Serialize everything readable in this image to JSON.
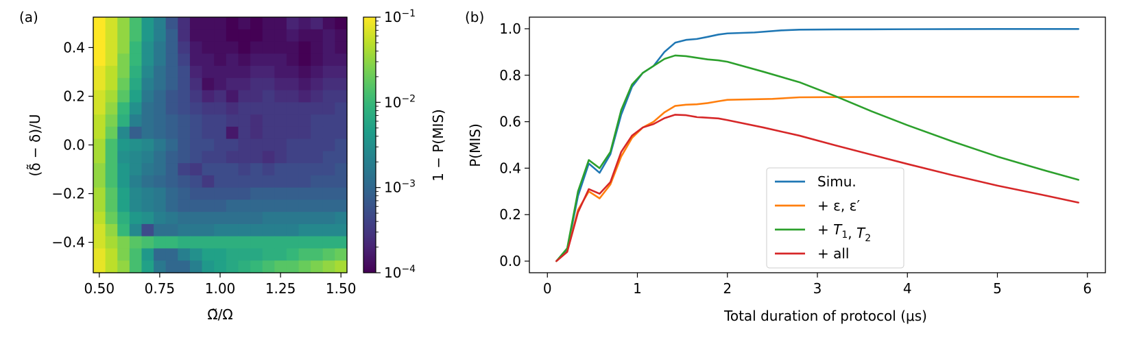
{
  "figure": {
    "panel_a_label": "(a)",
    "panel_b_label": "(b)"
  },
  "chart_data": [
    {
      "type": "heatmap",
      "panel": "(a)",
      "xlabel": "Ω̃/Ω",
      "ylabel": "(δ̃ − δ)/U",
      "colorbar_label": "1 − P(MIS)",
      "colorbar_scale": "log",
      "colorbar_range": [
        0.0001,
        0.1
      ],
      "colorbar_ticks": [
        {
          "value": 0.1,
          "label": "10−1"
        },
        {
          "value": 0.01,
          "label": "10−2"
        },
        {
          "value": 0.001,
          "label": "10−3"
        },
        {
          "value": 0.0001,
          "label": "10−4"
        }
      ],
      "colormap": "viridis",
      "xlim": [
        0.475,
        1.525
      ],
      "ylim": [
        -0.525,
        0.525
      ],
      "x_ticks": [
        0.5,
        0.75,
        1.0,
        1.25,
        1.5
      ],
      "x_tick_labels": [
        "0.50",
        "0.75",
        "1.00",
        "1.25",
        "1.50"
      ],
      "y_ticks": [
        -0.4,
        -0.2,
        0.0,
        0.2,
        0.4
      ],
      "y_tick_labels": [
        "−0.4",
        "−0.2",
        "0.0",
        "0.2",
        "0.4"
      ],
      "grid_shape": {
        "columns": 21,
        "rows": 21,
        "x_start": 0.5,
        "x_step": 0.05,
        "y_start": -0.5,
        "y_step": 0.05
      },
      "log10_values_rows_top_to_bottom": [
        [
          -1.0,
          -1.2,
          -1.5,
          -1.9,
          -2.4,
          -2.7,
          -3.2,
          -3.6,
          -3.9,
          -3.9,
          -3.9,
          -4.0,
          -3.9,
          -4.0,
          -3.9,
          -3.9,
          -3.7,
          -3.8,
          -3.7,
          -3.9,
          -4.0
        ],
        [
          -1.0,
          -1.2,
          -1.5,
          -1.9,
          -2.4,
          -2.7,
          -3.1,
          -3.6,
          -3.9,
          -3.9,
          -3.9,
          -4.0,
          -4.0,
          -4.0,
          -3.9,
          -3.9,
          -3.8,
          -3.9,
          -3.9,
          -3.8,
          -3.9
        ],
        [
          -1.0,
          -1.2,
          -1.5,
          -2.0,
          -2.5,
          -2.8,
          -3.1,
          -3.5,
          -3.8,
          -3.9,
          -3.9,
          -3.9,
          -4.0,
          -3.9,
          -3.9,
          -3.9,
          -3.9,
          -4.0,
          -3.9,
          -3.8,
          -3.9
        ],
        [
          -1.0,
          -1.2,
          -1.6,
          -2.0,
          -2.5,
          -2.8,
          -3.1,
          -3.4,
          -3.8,
          -3.8,
          -3.9,
          -3.8,
          -3.9,
          -3.8,
          -3.8,
          -3.8,
          -3.9,
          -4.0,
          -3.9,
          -3.8,
          -3.8
        ],
        [
          -1.1,
          -1.3,
          -1.6,
          -2.1,
          -2.6,
          -2.9,
          -3.1,
          -3.3,
          -3.7,
          -3.8,
          -3.8,
          -3.8,
          -3.8,
          -3.7,
          -3.7,
          -3.8,
          -3.8,
          -3.9,
          -3.8,
          -3.7,
          -3.7
        ],
        [
          -1.1,
          -1.3,
          -1.7,
          -2.2,
          -2.7,
          -2.9,
          -3.1,
          -3.3,
          -3.6,
          -3.9,
          -3.8,
          -3.7,
          -3.7,
          -3.6,
          -3.6,
          -3.7,
          -3.7,
          -3.8,
          -3.7,
          -3.6,
          -3.6
        ],
        [
          -1.2,
          -1.4,
          -1.8,
          -2.3,
          -2.8,
          -3.0,
          -3.2,
          -3.3,
          -3.5,
          -3.7,
          -3.6,
          -3.8,
          -3.6,
          -3.6,
          -3.5,
          -3.6,
          -3.6,
          -3.7,
          -3.6,
          -3.5,
          -3.5
        ],
        [
          -1.2,
          -1.5,
          -2.0,
          -2.5,
          -2.9,
          -3.0,
          -3.2,
          -3.3,
          -3.4,
          -3.5,
          -3.5,
          -3.6,
          -3.5,
          -3.5,
          -3.5,
          -3.5,
          -3.5,
          -3.5,
          -3.5,
          -3.5,
          -3.4
        ],
        [
          -1.3,
          -1.6,
          -2.1,
          -2.7,
          -2.9,
          -3.0,
          -3.1,
          -3.2,
          -3.3,
          -3.4,
          -3.4,
          -3.5,
          -3.5,
          -3.6,
          -3.5,
          -3.5,
          -3.5,
          -3.5,
          -3.4,
          -3.4,
          -3.4
        ],
        [
          -1.3,
          -1.7,
          -2.6,
          -3.1,
          -2.9,
          -3.0,
          -3.1,
          -3.2,
          -3.3,
          -3.4,
          -3.4,
          -3.8,
          -3.5,
          -3.6,
          -3.5,
          -3.5,
          -3.5,
          -3.5,
          -3.4,
          -3.4,
          -3.4
        ],
        [
          -1.4,
          -1.9,
          -2.4,
          -2.5,
          -2.6,
          -2.8,
          -3.0,
          -3.2,
          -3.3,
          -3.3,
          -3.4,
          -3.4,
          -3.5,
          -3.5,
          -3.5,
          -3.5,
          -3.4,
          -3.4,
          -3.4,
          -3.4,
          -3.3
        ],
        [
          -1.4,
          -1.9,
          -2.5,
          -2.6,
          -2.7,
          -2.9,
          -3.1,
          -3.2,
          -3.3,
          -3.4,
          -3.4,
          -3.5,
          -3.5,
          -3.5,
          -3.6,
          -3.5,
          -3.4,
          -3.4,
          -3.4,
          -3.3,
          -3.3
        ],
        [
          -1.5,
          -1.9,
          -2.4,
          -2.6,
          -2.8,
          -2.9,
          -3.1,
          -3.4,
          -3.5,
          -3.3,
          -3.3,
          -3.3,
          -3.4,
          -3.3,
          -3.4,
          -3.3,
          -3.3,
          -3.3,
          -3.3,
          -3.3,
          -3.2
        ],
        [
          -1.5,
          -1.9,
          -2.4,
          -2.7,
          -2.9,
          -3.0,
          -3.1,
          -3.2,
          -3.3,
          -3.5,
          -3.3,
          -3.3,
          -3.3,
          -3.3,
          -3.3,
          -3.3,
          -3.3,
          -3.3,
          -3.2,
          -3.2,
          -3.2
        ],
        [
          -1.4,
          -1.8,
          -2.3,
          -2.6,
          -2.7,
          -2.8,
          -3.0,
          -3.1,
          -3.2,
          -3.2,
          -3.2,
          -3.2,
          -3.2,
          -3.1,
          -3.1,
          -3.1,
          -3.1,
          -3.1,
          -3.1,
          -3.1,
          -3.1
        ],
        [
          -1.4,
          -1.8,
          -2.3,
          -2.6,
          -2.7,
          -2.8,
          -3.0,
          -3.1,
          -3.1,
          -3.1,
          -3.1,
          -3.0,
          -3.0,
          -3.0,
          -3.0,
          -3.0,
          -3.0,
          -3.0,
          -3.0,
          -3.0,
          -3.0
        ],
        [
          -1.3,
          -1.7,
          -2.1,
          -2.4,
          -2.5,
          -2.7,
          -2.8,
          -2.9,
          -2.9,
          -2.9,
          -2.9,
          -2.9,
          -2.9,
          -2.9,
          -2.8,
          -2.8,
          -2.8,
          -2.8,
          -2.8,
          -2.8,
          -2.7
        ],
        [
          -1.2,
          -1.5,
          -2.0,
          -2.6,
          -3.3,
          -2.9,
          -2.9,
          -2.8,
          -2.8,
          -2.8,
          -2.7,
          -2.7,
          -2.7,
          -2.7,
          -2.7,
          -2.7,
          -2.7,
          -2.6,
          -2.6,
          -2.6,
          -2.6
        ],
        [
          -1.2,
          -1.4,
          -1.6,
          -1.8,
          -1.9,
          -2.0,
          -2.0,
          -2.1,
          -2.1,
          -2.1,
          -2.1,
          -2.1,
          -2.1,
          -2.1,
          -2.1,
          -2.1,
          -2.1,
          -2.1,
          -2.1,
          -2.1,
          -2.1
        ],
        [
          -1.1,
          -1.3,
          -1.6,
          -1.9,
          -2.4,
          -3.0,
          -3.0,
          -2.7,
          -2.5,
          -2.3,
          -2.3,
          -2.2,
          -2.2,
          -2.2,
          -2.1,
          -2.1,
          -2.0,
          -1.9,
          -1.9,
          -1.8,
          -1.7
        ],
        [
          -1.1,
          -1.3,
          -1.5,
          -1.9,
          -2.3,
          -2.8,
          -3.0,
          -3.0,
          -2.7,
          -2.4,
          -2.3,
          -2.2,
          -2.1,
          -2.0,
          -1.9,
          -1.8,
          -1.8,
          -1.7,
          -1.6,
          -1.5,
          -1.4
        ]
      ]
    },
    {
      "type": "line",
      "panel": "(b)",
      "xlabel": "Total duration of protocol (μs)",
      "ylabel": "P(MIS)",
      "xlim": [
        -0.2,
        6.2
      ],
      "ylim": [
        -0.05,
        1.05
      ],
      "x_ticks": [
        0,
        1,
        2,
        3,
        4,
        5,
        6
      ],
      "x_tick_labels": [
        "0",
        "1",
        "2",
        "3",
        "4",
        "5",
        "6"
      ],
      "y_ticks": [
        0.0,
        0.2,
        0.4,
        0.6,
        0.8,
        1.0
      ],
      "y_tick_labels": [
        "0.0",
        "0.2",
        "0.4",
        "0.6",
        "0.8",
        "1.0"
      ],
      "grid": false,
      "legend_position": "lower-center",
      "series": [
        {
          "name": "Simu.",
          "color": "#1f77b4",
          "points": [
            [
              0.1,
              0.0
            ],
            [
              0.22,
              0.05
            ],
            [
              0.34,
              0.28
            ],
            [
              0.46,
              0.42
            ],
            [
              0.58,
              0.38
            ],
            [
              0.7,
              0.46
            ],
            [
              0.82,
              0.63
            ],
            [
              0.94,
              0.75
            ],
            [
              1.06,
              0.81
            ],
            [
              1.18,
              0.84
            ],
            [
              1.3,
              0.9
            ],
            [
              1.42,
              0.94
            ],
            [
              1.54,
              0.952
            ],
            [
              1.66,
              0.956
            ],
            [
              1.78,
              0.965
            ],
            [
              1.9,
              0.975
            ],
            [
              2.0,
              0.98
            ],
            [
              2.3,
              0.984
            ],
            [
              2.6,
              0.993
            ],
            [
              2.8,
              0.996
            ],
            [
              3.2,
              0.997
            ],
            [
              4.0,
              0.998
            ],
            [
              5.0,
              0.999
            ],
            [
              5.9,
              0.999
            ]
          ]
        },
        {
          "name": "+ ε, ε′",
          "color": "#ff7f0e",
          "points": [
            [
              0.1,
              0.0
            ],
            [
              0.22,
              0.04
            ],
            [
              0.34,
              0.22
            ],
            [
              0.46,
              0.3
            ],
            [
              0.58,
              0.27
            ],
            [
              0.7,
              0.33
            ],
            [
              0.82,
              0.45
            ],
            [
              0.94,
              0.53
            ],
            [
              1.06,
              0.575
            ],
            [
              1.18,
              0.6
            ],
            [
              1.3,
              0.64
            ],
            [
              1.42,
              0.668
            ],
            [
              1.54,
              0.673
            ],
            [
              1.66,
              0.675
            ],
            [
              1.78,
              0.68
            ],
            [
              1.9,
              0.688
            ],
            [
              2.0,
              0.694
            ],
            [
              2.5,
              0.698
            ],
            [
              2.8,
              0.705
            ],
            [
              3.2,
              0.706
            ],
            [
              4.0,
              0.707
            ],
            [
              5.0,
              0.707
            ],
            [
              5.9,
              0.707
            ]
          ]
        },
        {
          "name": "+ T1, T2",
          "color": "#2ca02c",
          "points": [
            [
              0.1,
              0.0
            ],
            [
              0.22,
              0.055
            ],
            [
              0.34,
              0.3
            ],
            [
              0.46,
              0.435
            ],
            [
              0.58,
              0.4
            ],
            [
              0.7,
              0.47
            ],
            [
              0.82,
              0.65
            ],
            [
              0.94,
              0.76
            ],
            [
              1.06,
              0.81
            ],
            [
              1.18,
              0.84
            ],
            [
              1.3,
              0.87
            ],
            [
              1.42,
              0.885
            ],
            [
              1.54,
              0.882
            ],
            [
              1.66,
              0.875
            ],
            [
              1.78,
              0.868
            ],
            [
              1.9,
              0.864
            ],
            [
              2.0,
              0.858
            ],
            [
              2.4,
              0.815
            ],
            [
              2.8,
              0.77
            ],
            [
              3.2,
              0.71
            ],
            [
              3.6,
              0.645
            ],
            [
              4.0,
              0.585
            ],
            [
              4.5,
              0.515
            ],
            [
              5.0,
              0.45
            ],
            [
              5.5,
              0.393
            ],
            [
              5.9,
              0.35
            ]
          ]
        },
        {
          "name": "+ all",
          "color": "#d62728",
          "points": [
            [
              0.1,
              0.0
            ],
            [
              0.22,
              0.04
            ],
            [
              0.34,
              0.21
            ],
            [
              0.46,
              0.31
            ],
            [
              0.58,
              0.29
            ],
            [
              0.7,
              0.34
            ],
            [
              0.82,
              0.47
            ],
            [
              0.94,
              0.54
            ],
            [
              1.06,
              0.575
            ],
            [
              1.18,
              0.59
            ],
            [
              1.3,
              0.615
            ],
            [
              1.42,
              0.63
            ],
            [
              1.54,
              0.628
            ],
            [
              1.66,
              0.62
            ],
            [
              1.78,
              0.617
            ],
            [
              1.9,
              0.614
            ],
            [
              2.0,
              0.607
            ],
            [
              2.4,
              0.575
            ],
            [
              2.8,
              0.54
            ],
            [
              3.2,
              0.498
            ],
            [
              3.6,
              0.458
            ],
            [
              4.0,
              0.418
            ],
            [
              4.5,
              0.37
            ],
            [
              5.0,
              0.325
            ],
            [
              5.5,
              0.285
            ],
            [
              5.9,
              0.252
            ]
          ]
        }
      ]
    }
  ]
}
